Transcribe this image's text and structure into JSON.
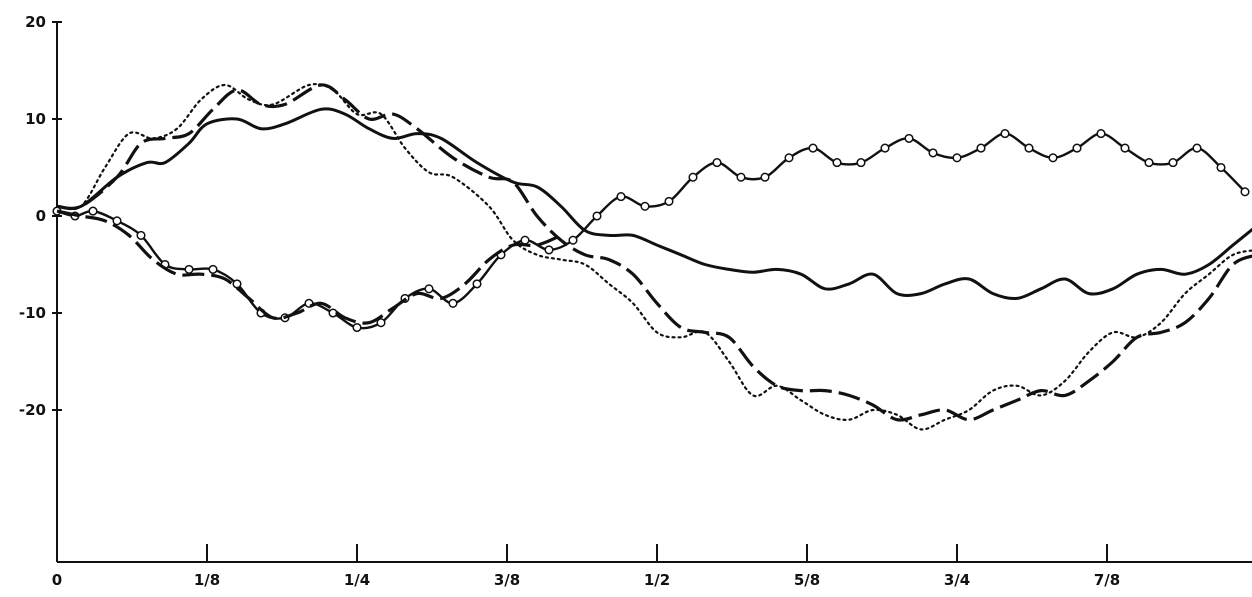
{
  "chart_data": {
    "type": "line",
    "title": "",
    "xlabel": "",
    "ylabel": "",
    "xlim": [
      0,
      1
    ],
    "ylim": [
      -35,
      20
    ],
    "grid": false,
    "legend": "none",
    "x_ticks": [
      {
        "value": 0,
        "label": "0"
      },
      {
        "value": 0.125,
        "label": "1/8"
      },
      {
        "value": 0.25,
        "label": "1/4"
      },
      {
        "value": 0.375,
        "label": "3/8"
      },
      {
        "value": 0.5,
        "label": "1/2"
      },
      {
        "value": 0.625,
        "label": "5/8"
      },
      {
        "value": 0.75,
        "label": "3/4"
      },
      {
        "value": 0.875,
        "label": "7/8"
      }
    ],
    "y_ticks": [
      {
        "value": 20,
        "label": "20"
      },
      {
        "value": 10,
        "label": "10"
      },
      {
        "value": 0,
        "label": "0"
      },
      {
        "value": -10,
        "label": "-10"
      },
      {
        "value": -20,
        "label": "-20"
      }
    ],
    "series": [
      {
        "style": "solid",
        "x": [
          0,
          0.02,
          0.05,
          0.075,
          0.09,
          0.11,
          0.125,
          0.15,
          0.17,
          0.19,
          0.22,
          0.24,
          0.26,
          0.28,
          0.3,
          0.32,
          0.35,
          0.38,
          0.4,
          0.42,
          0.44,
          0.46,
          0.48,
          0.5,
          0.52,
          0.54,
          0.56,
          0.58,
          0.6,
          0.62,
          0.64,
          0.66,
          0.68,
          0.7,
          0.72,
          0.74,
          0.76,
          0.78,
          0.8,
          0.82,
          0.84,
          0.86,
          0.88,
          0.9,
          0.92,
          0.94,
          0.96,
          0.98,
          1.0
        ],
        "y": [
          1,
          1,
          4,
          5.5,
          5.5,
          7.5,
          9.5,
          10,
          9,
          9.5,
          11,
          10.5,
          9,
          8,
          8.5,
          8,
          5.5,
          3.5,
          3,
          1,
          -1.5,
          -2,
          -2,
          -3,
          -4,
          -5,
          -5.5,
          -5.8,
          -5.5,
          -6,
          -7.5,
          -7,
          -6,
          -8,
          -8,
          -7,
          -6.5,
          -8,
          -8.5,
          -7.5,
          -6.5,
          -8,
          -7.5,
          -6,
          -5.5,
          -6,
          -5,
          -3,
          -1
        ]
      },
      {
        "style": "dashed",
        "x": [
          0,
          0.02,
          0.05,
          0.07,
          0.09,
          0.11,
          0.13,
          0.15,
          0.17,
          0.19,
          0.22,
          0.24,
          0.26,
          0.28,
          0.3,
          0.33,
          0.36,
          0.38,
          0.4,
          0.42,
          0.44,
          0.46,
          0.48,
          0.5,
          0.52,
          0.54,
          0.56,
          0.58,
          0.6,
          0.62,
          0.64,
          0.66,
          0.68,
          0.7,
          0.72,
          0.74,
          0.76,
          0.78,
          0.8,
          0.82,
          0.84,
          0.86,
          0.88,
          0.9,
          0.92,
          0.94,
          0.96,
          0.98,
          1.0
        ],
        "y": [
          1,
          1,
          4,
          7.5,
          8,
          8.5,
          11,
          13,
          11.5,
          11.5,
          13.5,
          12,
          10,
          10.5,
          9,
          6,
          4,
          3.5,
          0,
          -2.5,
          -4,
          -4.5,
          -6,
          -9,
          -11.5,
          -12,
          -12.5,
          -15.5,
          -17.5,
          -18,
          -18,
          -18.5,
          -19.5,
          -21,
          -20.5,
          -20,
          -21,
          -20,
          -19,
          -18,
          -18.5,
          -17,
          -15,
          -12.5,
          -12,
          -11,
          -8.5,
          -5,
          -4
        ]
      },
      {
        "style": "dotted",
        "x": [
          0,
          0.02,
          0.04,
          0.06,
          0.08,
          0.1,
          0.12,
          0.14,
          0.16,
          0.18,
          0.21,
          0.23,
          0.25,
          0.27,
          0.29,
          0.31,
          0.33,
          0.36,
          0.38,
          0.4,
          0.42,
          0.44,
          0.46,
          0.48,
          0.5,
          0.52,
          0.54,
          0.56,
          0.58,
          0.6,
          0.62,
          0.64,
          0.66,
          0.68,
          0.7,
          0.72,
          0.74,
          0.76,
          0.78,
          0.8,
          0.82,
          0.84,
          0.86,
          0.88,
          0.9,
          0.92,
          0.94,
          0.96,
          0.98,
          1.0
        ],
        "y": [
          1,
          1,
          5,
          8.5,
          8,
          9,
          12,
          13.5,
          12,
          11.5,
          13.5,
          13,
          10.5,
          10.5,
          7,
          4.5,
          4,
          1,
          -2.5,
          -4,
          -4.5,
          -5,
          -7,
          -9,
          -12,
          -12.5,
          -12,
          -15,
          -18.5,
          -17.5,
          -19,
          -20.5,
          -21,
          -20,
          -20.5,
          -22,
          -21,
          -20,
          -18,
          -17.5,
          -18.5,
          -17,
          -14,
          -12,
          -12.5,
          -11,
          -8,
          -6,
          -4,
          -3.5
        ]
      },
      {
        "style": "solid-markers",
        "x": [
          0,
          0.015,
          0.03,
          0.05,
          0.07,
          0.09,
          0.11,
          0.13,
          0.15,
          0.17,
          0.19,
          0.21,
          0.23,
          0.25,
          0.27,
          0.29,
          0.31,
          0.33,
          0.35,
          0.37,
          0.39,
          0.41,
          0.43,
          0.45,
          0.47,
          0.49,
          0.51,
          0.53,
          0.55,
          0.57,
          0.59,
          0.61,
          0.63,
          0.65,
          0.67,
          0.69,
          0.71,
          0.73,
          0.75,
          0.77,
          0.79,
          0.81,
          0.83,
          0.85,
          0.87,
          0.89,
          0.91,
          0.93,
          0.95,
          0.97,
          0.99
        ],
        "y": [
          0.5,
          0,
          0.5,
          -0.5,
          -2,
          -5,
          -5.5,
          -5.5,
          -7,
          -10,
          -10.5,
          -9,
          -10,
          -11.5,
          -11,
          -8.5,
          -7.5,
          -9,
          -7,
          -4,
          -2.5,
          -3.5,
          -2.5,
          0,
          2,
          1,
          1.5,
          4,
          5.5,
          4,
          4,
          6,
          7,
          5.5,
          5.5,
          7,
          8,
          6.5,
          6,
          7,
          8.5,
          7,
          6,
          7,
          8.5,
          7,
          5.5,
          5.5,
          7,
          5,
          2.5
        ]
      },
      {
        "style": "dashed",
        "x": [
          0,
          0.02,
          0.04,
          0.06,
          0.08,
          0.1,
          0.12,
          0.14,
          0.16,
          0.18,
          0.2,
          0.22,
          0.24,
          0.26,
          0.28,
          0.3,
          0.32,
          0.34,
          0.36,
          0.38,
          0.4,
          0.42
        ],
        "y": [
          0.5,
          0,
          -0.5,
          -2,
          -4.5,
          -6,
          -6,
          -6.5,
          -8.5,
          -10.5,
          -10,
          -9,
          -10.5,
          -11,
          -9.5,
          -8,
          -8.5,
          -7,
          -4.5,
          -3,
          -3,
          -2
        ]
      }
    ]
  }
}
